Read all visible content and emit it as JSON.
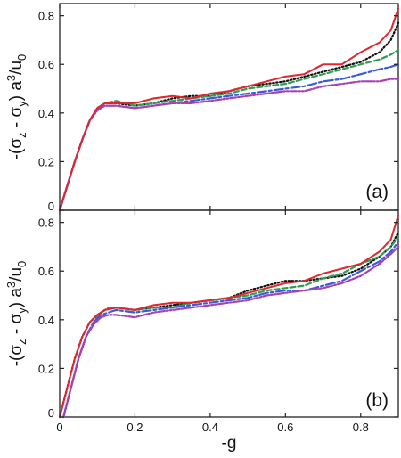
{
  "figure": {
    "ylabel_parts": [
      "-(σ",
      "z",
      " - σ",
      "y",
      ") a",
      "3",
      "/u",
      "0"
    ],
    "xlabel": "-g"
  },
  "chart_data": [
    {
      "type": "line",
      "panel_label": "(a)",
      "xlim": [
        0,
        0.9
      ],
      "ylim": [
        0,
        0.85
      ],
      "y_ticks": [
        0,
        0.2,
        0.4,
        0.6,
        0.8
      ],
      "y_tick_labels": [
        "0",
        "0.2",
        "0.4",
        "0.6",
        "0.8"
      ],
      "grid": false,
      "series": [
        {
          "color": "#111111",
          "dash": "1.5,2.5",
          "x": [
            0,
            0.02,
            0.04,
            0.06,
            0.08,
            0.1,
            0.12,
            0.15,
            0.2,
            0.25,
            0.3,
            0.35,
            0.4,
            0.45,
            0.5,
            0.55,
            0.6,
            0.65,
            0.7,
            0.75,
            0.8,
            0.85,
            0.88,
            0.9
          ],
          "y": [
            0,
            0.1,
            0.2,
            0.29,
            0.37,
            0.42,
            0.44,
            0.44,
            0.43,
            0.44,
            0.46,
            0.47,
            0.47,
            0.49,
            0.51,
            0.52,
            0.53,
            0.55,
            0.57,
            0.59,
            0.61,
            0.65,
            0.7,
            0.77
          ]
        },
        {
          "color": "#2f9e4f",
          "dash": "6,3",
          "x": [
            0,
            0.02,
            0.04,
            0.06,
            0.08,
            0.1,
            0.12,
            0.15,
            0.2,
            0.25,
            0.3,
            0.35,
            0.4,
            0.45,
            0.5,
            0.55,
            0.6,
            0.65,
            0.7,
            0.75,
            0.8,
            0.85,
            0.88,
            0.9
          ],
          "y": [
            0,
            0.1,
            0.2,
            0.29,
            0.37,
            0.42,
            0.44,
            0.45,
            0.43,
            0.44,
            0.45,
            0.46,
            0.47,
            0.48,
            0.5,
            0.51,
            0.52,
            0.54,
            0.56,
            0.58,
            0.6,
            0.62,
            0.64,
            0.66
          ]
        },
        {
          "color": "#3a5bd6",
          "dash": "10,3,3,3",
          "x": [
            0,
            0.02,
            0.04,
            0.06,
            0.08,
            0.1,
            0.12,
            0.15,
            0.2,
            0.25,
            0.3,
            0.35,
            0.4,
            0.45,
            0.5,
            0.55,
            0.6,
            0.65,
            0.7,
            0.75,
            0.8,
            0.85,
            0.88,
            0.9
          ],
          "y": [
            0,
            0.1,
            0.2,
            0.29,
            0.37,
            0.42,
            0.43,
            0.43,
            0.42,
            0.43,
            0.44,
            0.45,
            0.46,
            0.47,
            0.48,
            0.49,
            0.5,
            0.51,
            0.53,
            0.54,
            0.56,
            0.58,
            0.59,
            0.6
          ]
        },
        {
          "color": "#a83fb5",
          "dash": "7,2,2,2,2,2",
          "x": [
            0,
            0.02,
            0.04,
            0.06,
            0.08,
            0.1,
            0.12,
            0.15,
            0.2,
            0.25,
            0.3,
            0.35,
            0.4,
            0.45,
            0.5,
            0.55,
            0.6,
            0.65,
            0.7,
            0.75,
            0.8,
            0.85,
            0.88,
            0.9
          ],
          "y": [
            0,
            0.1,
            0.2,
            0.29,
            0.37,
            0.41,
            0.43,
            0.43,
            0.42,
            0.43,
            0.44,
            0.44,
            0.45,
            0.46,
            0.47,
            0.48,
            0.49,
            0.49,
            0.51,
            0.52,
            0.53,
            0.53,
            0.54,
            0.54
          ]
        },
        {
          "color": "#e0262e",
          "dash": "",
          "x": [
            0,
            0.02,
            0.04,
            0.06,
            0.08,
            0.1,
            0.12,
            0.15,
            0.2,
            0.25,
            0.3,
            0.35,
            0.4,
            0.45,
            0.5,
            0.55,
            0.6,
            0.65,
            0.7,
            0.75,
            0.8,
            0.85,
            0.88,
            0.9
          ],
          "y": [
            0,
            0.1,
            0.2,
            0.29,
            0.37,
            0.42,
            0.44,
            0.44,
            0.44,
            0.46,
            0.47,
            0.46,
            0.48,
            0.49,
            0.51,
            0.53,
            0.55,
            0.56,
            0.6,
            0.6,
            0.65,
            0.69,
            0.74,
            0.83
          ]
        }
      ]
    },
    {
      "type": "line",
      "panel_label": "(b)",
      "xlim": [
        0,
        0.9
      ],
      "ylim": [
        0,
        0.85
      ],
      "x_ticks": [
        0,
        0.2,
        0.4,
        0.6,
        0.8
      ],
      "x_tick_labels": [
        "0",
        "0.2",
        "0.4",
        "0.6",
        "0.8"
      ],
      "y_ticks": [
        0,
        0.2,
        0.4,
        0.6,
        0.8
      ],
      "y_tick_labels": [
        "0",
        "0.2",
        "0.4",
        "0.6",
        "0.8"
      ],
      "grid": false,
      "series": [
        {
          "color": "#111111",
          "dash": "1.5,2.5",
          "x": [
            0.0,
            0.02,
            0.04,
            0.06,
            0.08,
            0.1,
            0.12,
            0.15,
            0.2,
            0.25,
            0.3,
            0.35,
            0.4,
            0.45,
            0.5,
            0.55,
            0.6,
            0.65,
            0.7,
            0.75,
            0.8,
            0.85,
            0.88,
            0.9
          ],
          "y": [
            0,
            0.12,
            0.24,
            0.33,
            0.39,
            0.42,
            0.44,
            0.45,
            0.44,
            0.45,
            0.46,
            0.47,
            0.48,
            0.49,
            0.52,
            0.54,
            0.56,
            0.56,
            0.57,
            0.58,
            0.61,
            0.66,
            0.7,
            0.76
          ]
        },
        {
          "color": "#2f9e4f",
          "dash": "6,3",
          "x": [
            0.01,
            0.03,
            0.05,
            0.07,
            0.09,
            0.11,
            0.13,
            0.15,
            0.2,
            0.25,
            0.3,
            0.35,
            0.4,
            0.45,
            0.5,
            0.55,
            0.6,
            0.65,
            0.7,
            0.75,
            0.8,
            0.85,
            0.88,
            0.9
          ],
          "y": [
            0,
            0.12,
            0.24,
            0.33,
            0.39,
            0.43,
            0.45,
            0.45,
            0.44,
            0.45,
            0.45,
            0.47,
            0.48,
            0.49,
            0.5,
            0.52,
            0.53,
            0.54,
            0.57,
            0.59,
            0.63,
            0.66,
            0.7,
            0.74
          ]
        },
        {
          "color": "#3a5bd6",
          "dash": "10,3,3,3",
          "x": [
            0.01,
            0.03,
            0.05,
            0.07,
            0.09,
            0.11,
            0.13,
            0.15,
            0.2,
            0.25,
            0.3,
            0.35,
            0.4,
            0.45,
            0.5,
            0.55,
            0.6,
            0.65,
            0.7,
            0.75,
            0.8,
            0.85,
            0.88,
            0.9
          ],
          "y": [
            0,
            0.12,
            0.24,
            0.33,
            0.39,
            0.42,
            0.43,
            0.44,
            0.43,
            0.44,
            0.45,
            0.46,
            0.47,
            0.48,
            0.49,
            0.51,
            0.52,
            0.52,
            0.54,
            0.56,
            0.6,
            0.64,
            0.68,
            0.72
          ]
        },
        {
          "color": "#a83fb5",
          "dash": "7,2,2,2,2,2",
          "x": [
            0.01,
            0.03,
            0.05,
            0.07,
            0.09,
            0.11,
            0.13,
            0.15,
            0.2,
            0.25,
            0.3,
            0.35,
            0.4,
            0.45,
            0.5,
            0.55,
            0.6,
            0.65,
            0.7,
            0.75,
            0.8,
            0.85,
            0.88,
            0.9
          ],
          "y": [
            0,
            0.12,
            0.24,
            0.33,
            0.38,
            0.41,
            0.42,
            0.42,
            0.41,
            0.43,
            0.44,
            0.45,
            0.46,
            0.47,
            0.48,
            0.5,
            0.51,
            0.52,
            0.53,
            0.55,
            0.58,
            0.63,
            0.67,
            0.7
          ]
        },
        {
          "color": "#e0262e",
          "dash": "",
          "x": [
            0.0,
            0.02,
            0.04,
            0.06,
            0.08,
            0.1,
            0.12,
            0.15,
            0.2,
            0.25,
            0.3,
            0.35,
            0.4,
            0.45,
            0.5,
            0.55,
            0.6,
            0.65,
            0.7,
            0.75,
            0.8,
            0.85,
            0.88,
            0.9
          ],
          "y": [
            0,
            0.12,
            0.24,
            0.33,
            0.39,
            0.42,
            0.44,
            0.45,
            0.44,
            0.46,
            0.47,
            0.47,
            0.48,
            0.49,
            0.51,
            0.53,
            0.55,
            0.56,
            0.59,
            0.61,
            0.63,
            0.68,
            0.73,
            0.83
          ]
        }
      ]
    }
  ]
}
